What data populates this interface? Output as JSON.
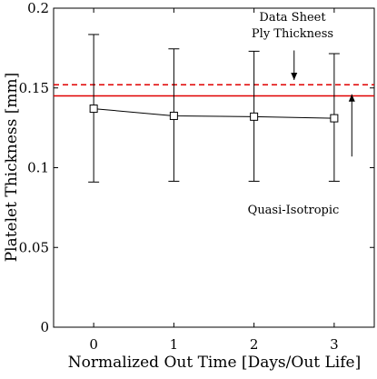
{
  "chart_data": {
    "type": "line",
    "xlabel": "Normalized Out Time [Days/Out Life]",
    "ylabel": "Platelet Thickness [mm]",
    "xlim": [
      -0.5,
      3.5
    ],
    "ylim": [
      0,
      0.2
    ],
    "x_ticks": [
      0,
      1,
      2,
      3
    ],
    "x_tick_labels": [
      "0",
      "1",
      "2",
      "3"
    ],
    "y_ticks": [
      0,
      0.05,
      0.1,
      0.15,
      0.2
    ],
    "y_tick_labels": [
      "0",
      "0.05",
      "0.1",
      "0.15",
      "0.2"
    ],
    "grid": false,
    "series": [
      {
        "x": [
          0,
          1,
          2,
          3
        ],
        "y": [
          0.137,
          0.1325,
          0.132,
          0.131
        ],
        "error_lower": [
          0.091,
          0.0915,
          0.0915,
          0.0915
        ],
        "error_upper": [
          0.1835,
          0.1745,
          0.173,
          0.1715
        ],
        "marker": "square",
        "color": "#000000"
      }
    ],
    "reference_lines": [
      {
        "y": 0.152,
        "style": "dashed",
        "color": "#e00000"
      },
      {
        "y": 0.145,
        "style": "solid",
        "color": "#e00000"
      }
    ],
    "annotations": [
      {
        "lines": [
          "Data Sheet",
          "Ply Thickness"
        ],
        "arrow_x": 2.5,
        "arrow_from_y": 0.1735,
        "arrow_to_y": 0.155
      },
      {
        "lines": [
          "Quasi-Isotropic"
        ],
        "arrow_x": 3.22,
        "arrow_from_y": 0.107,
        "arrow_to_y": 0.146
      }
    ]
  }
}
